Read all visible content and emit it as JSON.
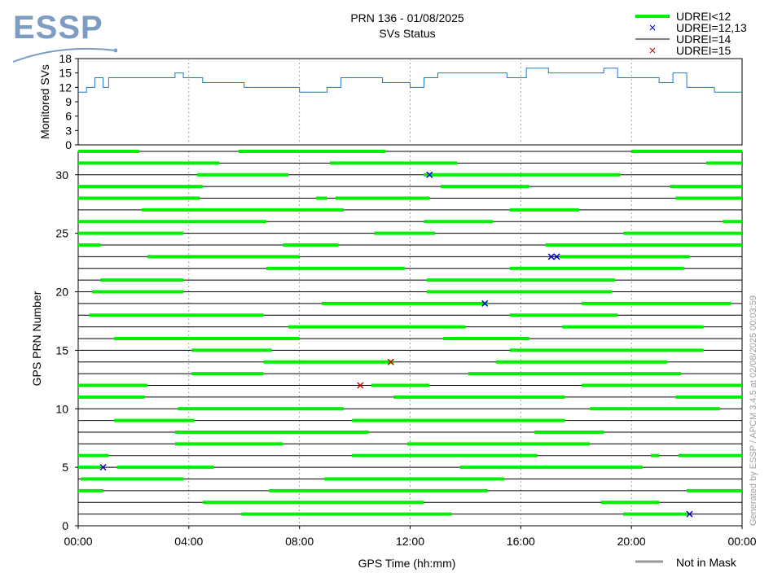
{
  "header": {
    "logo": "ESSP",
    "title": "PRN 136 - 01/08/2025",
    "subtitle": "SVs Status"
  },
  "credit": "Generated by ESSP / APCM 3.4.5 at 02/08/2025 00:03:59",
  "colors": {
    "udrei_lt12": "#00ee00",
    "udrei_12_13": "#0000cc",
    "udrei_14": "#000000",
    "udrei_15": "#cc0000",
    "monitored": "#1f77d4",
    "not_in_mask": "#999999"
  },
  "chart_data": [
    {
      "type": "line",
      "ylabel": "Monitored SVs",
      "ylim": [
        0,
        18
      ],
      "yticks": [
        "0",
        "3",
        "6",
        "9",
        "12",
        "15",
        "18"
      ],
      "xlim": [
        0,
        24
      ],
      "grid": true,
      "series": [
        {
          "values": [
            [
              0,
              11
            ],
            [
              0.3,
              12
            ],
            [
              0.6,
              14
            ],
            [
              0.9,
              12
            ],
            [
              1.1,
              14
            ],
            [
              3.5,
              15
            ],
            [
              3.8,
              14
            ],
            [
              4.5,
              13
            ],
            [
              5.5,
              13
            ],
            [
              6.0,
              12
            ],
            [
              7.5,
              12
            ],
            [
              8.0,
              11
            ],
            [
              8.5,
              11
            ],
            [
              9.0,
              12
            ],
            [
              9.5,
              14
            ],
            [
              10.5,
              14
            ],
            [
              11,
              13
            ],
            [
              12,
              12
            ],
            [
              12.5,
              14
            ],
            [
              13,
              15
            ],
            [
              14,
              15
            ],
            [
              15.5,
              14
            ],
            [
              16,
              14
            ],
            [
              16.2,
              16
            ],
            [
              17,
              15
            ],
            [
              18,
              15
            ],
            [
              19,
              16
            ],
            [
              19.5,
              14
            ],
            [
              20,
              14
            ],
            [
              21,
              13
            ],
            [
              21.5,
              15
            ],
            [
              22,
              12
            ],
            [
              23,
              11
            ],
            [
              24,
              11
            ]
          ]
        }
      ]
    },
    {
      "type": "bar",
      "xlabel": "GPS Time (hh:mm)",
      "ylabel": "GPS PRN Number",
      "xlim": [
        0,
        24
      ],
      "ylim": [
        0,
        32
      ],
      "xticks": [
        "00:00",
        "04:00",
        "08:00",
        "12:00",
        "16:00",
        "20:00",
        "00:00"
      ],
      "yticks": [
        "0",
        "5",
        "10",
        "15",
        "20",
        "25",
        "30"
      ],
      "grid": true,
      "legend": [
        {
          "label": "UDREI<12",
          "kind": "thickline",
          "color": "#00ee00"
        },
        {
          "label": "UDREI=12,13",
          "kind": "x",
          "color": "#0000cc"
        },
        {
          "label": "UDREI=14",
          "kind": "thinline",
          "color": "#000000"
        },
        {
          "label": "UDREI=15",
          "kind": "x",
          "color": "#cc0000"
        }
      ],
      "legend_bottom": {
        "label": "Not in Mask",
        "color": "#999999"
      },
      "prn_rows": [
        1,
        2,
        3,
        4,
        5,
        6,
        7,
        8,
        9,
        10,
        11,
        12,
        13,
        14,
        15,
        16,
        17,
        18,
        19,
        20,
        21,
        22,
        23,
        24,
        25,
        26,
        27,
        28,
        29,
        30,
        31,
        32
      ],
      "intervals": [
        {
          "prn": 1,
          "segments": [
            [
              5.9,
              13.5
            ],
            [
              19.7,
              22.0
            ]
          ]
        },
        {
          "prn": 2,
          "segments": [
            [
              4.5,
              12.5
            ],
            [
              18.9,
              21.0
            ]
          ]
        },
        {
          "prn": 3,
          "segments": [
            [
              0,
              0.9
            ],
            [
              6.9,
              14.8
            ],
            [
              22.0,
              24
            ]
          ]
        },
        {
          "prn": 4,
          "segments": [
            [
              0.1,
              3.8
            ],
            [
              8.9,
              15.4
            ]
          ]
        },
        {
          "prn": 5,
          "segments": [
            [
              0,
              0.8
            ],
            [
              1.4,
              4.9
            ],
            [
              13.8,
              20.4
            ]
          ]
        },
        {
          "prn": 6,
          "segments": [
            [
              0,
              1.1
            ],
            [
              9.9,
              16.6
            ],
            [
              20.7,
              21.0
            ],
            [
              21.7,
              24
            ]
          ]
        },
        {
          "prn": 7,
          "segments": [
            [
              3.5,
              7.4
            ],
            [
              11.9,
              18.5
            ]
          ]
        },
        {
          "prn": 8,
          "segments": [
            [
              3.5,
              10.5
            ],
            [
              16.5,
              19.0
            ]
          ]
        },
        {
          "prn": 9,
          "segments": [
            [
              1.3,
              4.2
            ],
            [
              9.9,
              17.6
            ]
          ]
        },
        {
          "prn": 10,
          "segments": [
            [
              3.6,
              9.6
            ],
            [
              18.5,
              23.2
            ]
          ]
        },
        {
          "prn": 11,
          "segments": [
            [
              0,
              2.4
            ],
            [
              11.4,
              17.6
            ],
            [
              21.6,
              24
            ]
          ]
        },
        {
          "prn": 12,
          "segments": [
            [
              0,
              2.5
            ],
            [
              10.6,
              12.7
            ],
            [
              18.2,
              24
            ]
          ]
        },
        {
          "prn": 13,
          "segments": [
            [
              4.1,
              6.7
            ],
            [
              14.1,
              21.8
            ]
          ]
        },
        {
          "prn": 14,
          "segments": [
            [
              6.7,
              11.4
            ],
            [
              15.1,
              21.3
            ]
          ]
        },
        {
          "prn": 15,
          "segments": [
            [
              4.1,
              7.0
            ],
            [
              15.6,
              22.6
            ]
          ]
        },
        {
          "prn": 16,
          "segments": [
            [
              1.3,
              8.0
            ],
            [
              13.2,
              16.3
            ]
          ]
        },
        {
          "prn": 17,
          "segments": [
            [
              7.6,
              14.0
            ],
            [
              17.5,
              22.6
            ]
          ]
        },
        {
          "prn": 18,
          "segments": [
            [
              0.4,
              6.7
            ],
            [
              15.6,
              19.5
            ]
          ]
        },
        {
          "prn": 19,
          "segments": [
            [
              8.8,
              14.8
            ],
            [
              18.2,
              23.6
            ]
          ]
        },
        {
          "prn": 20,
          "segments": [
            [
              0.5,
              3.8
            ],
            [
              12.6,
              19.3
            ]
          ]
        },
        {
          "prn": 21,
          "segments": [
            [
              0.8,
              3.8
            ],
            [
              12.6,
              19.4
            ]
          ]
        },
        {
          "prn": 22,
          "segments": [
            [
              6.8,
              11.8
            ],
            [
              15.6,
              21.9
            ]
          ]
        },
        {
          "prn": 23,
          "segments": [
            [
              2.5,
              8.0
            ],
            [
              17.4,
              22.1
            ]
          ]
        },
        {
          "prn": 24,
          "segments": [
            [
              0,
              0.8
            ],
            [
              7.4,
              9.4
            ],
            [
              16.9,
              24
            ]
          ]
        },
        {
          "prn": 25,
          "segments": [
            [
              0,
              3.8
            ],
            [
              10.7,
              12.9
            ],
            [
              19.7,
              24
            ]
          ]
        },
        {
          "prn": 26,
          "segments": [
            [
              0,
              6.8
            ],
            [
              12.5,
              15.0
            ],
            [
              23.3,
              24
            ]
          ]
        },
        {
          "prn": 27,
          "segments": [
            [
              2.3,
              9.6
            ],
            [
              15.6,
              18.1
            ]
          ]
        },
        {
          "prn": 28,
          "segments": [
            [
              0,
              4.4
            ],
            [
              8.6,
              9.0
            ],
            [
              9.3,
              12.7
            ],
            [
              21.6,
              24
            ]
          ]
        },
        {
          "prn": 29,
          "segments": [
            [
              0,
              4.5
            ],
            [
              13.1,
              16.3
            ],
            [
              21.4,
              24
            ]
          ]
        },
        {
          "prn": 30,
          "segments": [
            [
              4.3,
              7.6
            ],
            [
              12.5,
              19.6
            ]
          ]
        },
        {
          "prn": 31,
          "segments": [
            [
              0,
              5.1
            ],
            [
              9.1,
              13.7
            ],
            [
              22.7,
              24
            ]
          ]
        },
        {
          "prn": 32,
          "segments": [
            [
              0,
              2.2
            ],
            [
              5.8,
              11.1
            ],
            [
              20.0,
              24
            ]
          ]
        }
      ],
      "markers": [
        {
          "prn": 1,
          "t": 22.1,
          "kind": "12,13"
        },
        {
          "prn": 5,
          "t": 0.9,
          "kind": "12,13"
        },
        {
          "prn": 12,
          "t": 10.2,
          "kind": "15"
        },
        {
          "prn": 14,
          "t": 11.3,
          "kind": "15"
        },
        {
          "prn": 19,
          "t": 14.7,
          "kind": "12,13"
        },
        {
          "prn": 23,
          "t": 17.1,
          "kind": "12,13"
        },
        {
          "prn": 23,
          "t": 17.3,
          "kind": "12,13"
        },
        {
          "prn": 30,
          "t": 12.7,
          "kind": "12,13"
        }
      ]
    }
  ]
}
